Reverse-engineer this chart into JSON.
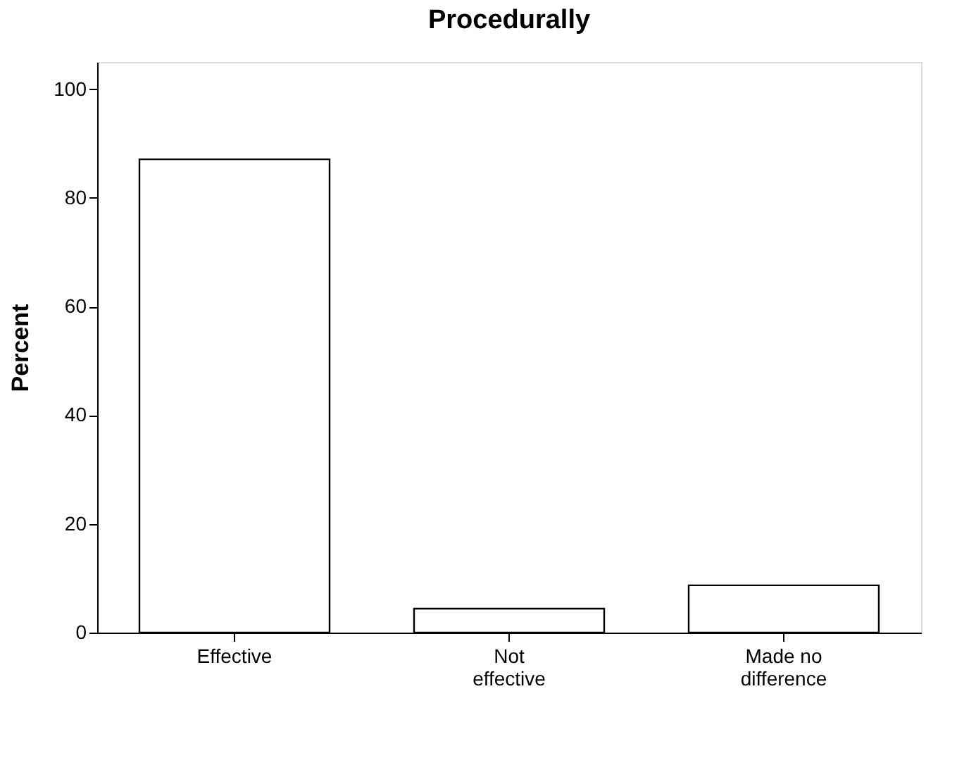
{
  "chart_data": {
    "type": "bar",
    "title": "Procedurally",
    "ylabel": "Percent",
    "categories": [
      "Effective",
      "Not effective",
      "Made no difference"
    ],
    "values": [
      87.1,
      4.4,
      8.7
    ],
    "color": "#ffffff",
    "ylim": [
      0,
      105
    ],
    "yticks": [
      0,
      20,
      40,
      60,
      80,
      100
    ],
    "grid": false
  }
}
